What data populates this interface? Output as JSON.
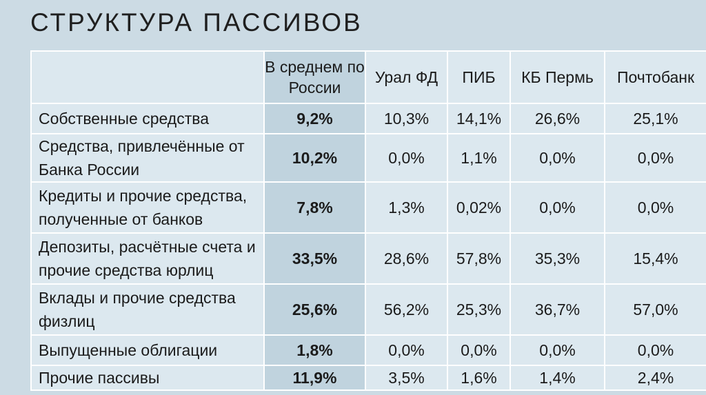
{
  "title": "СТРУКТУРА ПАССИВОВ",
  "table": {
    "headers": [
      "",
      "В среднем по России",
      "Урал ФД",
      "ПИБ",
      "КБ Пермь",
      "Почтобанк"
    ],
    "rows": [
      {
        "label": "Собственные средства",
        "values": [
          "9,2%",
          "10,3%",
          "14,1%",
          "26,6%",
          "25,1%"
        ]
      },
      {
        "label": "Средства, привлечённые от Банка России",
        "values": [
          "10,2%",
          "0,0%",
          "1,1%",
          "0,0%",
          "0,0%"
        ]
      },
      {
        "label": "Кредиты и прочие средства, полученные от банков",
        "values": [
          "7,8%",
          "1,3%",
          "0,02%",
          "0,0%",
          "0,0%"
        ]
      },
      {
        "label": "Депозиты, расчётные счета и прочие средства юрлиц",
        "values": [
          "33,5%",
          "28,6%",
          "57,8%",
          "35,3%",
          "15,4%"
        ]
      },
      {
        "label": "Вклады и прочие средства физлиц",
        "values": [
          "25,6%",
          "56,2%",
          "25,3%",
          "36,7%",
          "57,0%"
        ]
      },
      {
        "label": "Выпущенные облигации",
        "values": [
          "1,8%",
          "0,0%",
          "0,0%",
          "0,0%",
          "0,0%"
        ]
      },
      {
        "label": "Прочие пассивы",
        "values": [
          "11,9%",
          "3,5%",
          "1,6%",
          "1,4%",
          "2,4%"
        ]
      }
    ]
  }
}
